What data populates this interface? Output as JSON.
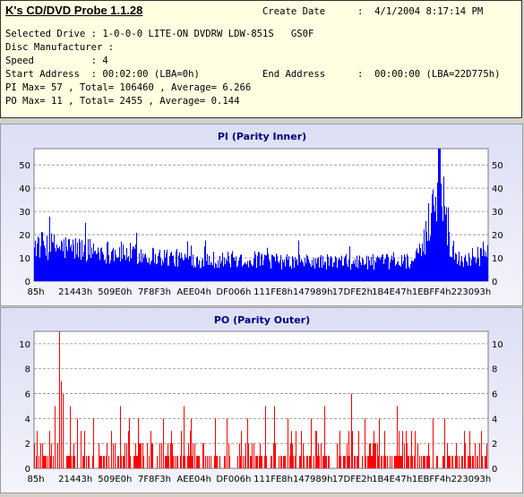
{
  "info": {
    "app_title": "K's CD/DVD Probe 1.1.28",
    "create_date_label": "Create Date",
    "create_date_value": ":  4/1/2004 8:17:14 PM",
    "lines": [
      "Selected Drive : 1-0-0-0 LITE-ON DVDRW LDW-851S   GS0F",
      "Disc Manufacturer :",
      "Speed          : 4",
      "Start Address  : 00:02:00 (LBA=0h)",
      "PI Max= 57 , Total= 106460 , Average= 6.266",
      "PO Max= 11 , Total= 2455 , Average= 0.144"
    ],
    "end_address_label": "End Address",
    "end_address_value": ":  00:00:00 (LBA=22D775h)"
  },
  "chart_data": [
    {
      "type": "bar",
      "title": "PI (Parity Inner)",
      "color": "#0000ff",
      "ylim": [
        0,
        57
      ],
      "yticks": [
        0,
        10,
        20,
        30,
        40,
        50
      ],
      "x_tick_labels": [
        "85h",
        "21443h",
        "509E0h",
        "7F8F3h",
        "AEE04h",
        "DF006h",
        "111FE8h",
        "147989h",
        "17DFE2h",
        "1B4E47h",
        "1EBFF4h",
        "223093h"
      ],
      "grid": true,
      "profile": [
        [
          0.0,
          17
        ],
        [
          0.05,
          16
        ],
        [
          0.1,
          15
        ],
        [
          0.15,
          14
        ],
        [
          0.2,
          13
        ],
        [
          0.25,
          12
        ],
        [
          0.3,
          11
        ],
        [
          0.35,
          10
        ],
        [
          0.4,
          10
        ],
        [
          0.45,
          10
        ],
        [
          0.5,
          10
        ],
        [
          0.55,
          9
        ],
        [
          0.6,
          9
        ],
        [
          0.65,
          9
        ],
        [
          0.7,
          9
        ],
        [
          0.75,
          9
        ],
        [
          0.8,
          9
        ],
        [
          0.84,
          10
        ],
        [
          0.855,
          14
        ],
        [
          0.865,
          22
        ],
        [
          0.875,
          32
        ],
        [
          0.885,
          44
        ],
        [
          0.895,
          52
        ],
        [
          0.905,
          38
        ],
        [
          0.915,
          18
        ],
        [
          0.93,
          10
        ],
        [
          0.96,
          11
        ],
        [
          1.0,
          12
        ]
      ],
      "max": 57,
      "max_position": 0.892
    },
    {
      "type": "bar",
      "title": "PO (Parity Outer)",
      "color": "#ff0000",
      "ylim": [
        0,
        11
      ],
      "yticks": [
        0,
        2,
        4,
        6,
        8,
        10
      ],
      "x_tick_labels": [
        "85h",
        "21443h",
        "509E0h",
        "7F8F3h",
        "AEE04h",
        "DF006h",
        "111FE8h",
        "147989h",
        "17DFE2h",
        "1B4E47h",
        "1EBFF4h",
        "223093h"
      ],
      "grid": true,
      "spikes": [
        [
          0.056,
          11
        ],
        [
          0.06,
          7
        ],
        [
          0.064,
          6
        ],
        [
          0.045,
          5
        ],
        [
          0.08,
          5
        ],
        [
          0.095,
          4
        ],
        [
          0.13,
          4
        ],
        [
          0.19,
          5
        ],
        [
          0.21,
          4
        ],
        [
          0.23,
          4
        ],
        [
          0.285,
          4
        ],
        [
          0.33,
          5
        ],
        [
          0.345,
          4
        ],
        [
          0.4,
          4
        ],
        [
          0.425,
          4
        ],
        [
          0.47,
          4
        ],
        [
          0.51,
          5
        ],
        [
          0.53,
          5
        ],
        [
          0.56,
          4
        ],
        [
          0.61,
          4
        ],
        [
          0.64,
          5
        ],
        [
          0.7,
          6
        ],
        [
          0.73,
          4
        ],
        [
          0.76,
          4
        ],
        [
          0.8,
          5
        ],
        [
          0.88,
          4
        ],
        [
          0.905,
          4
        ],
        [
          0.96,
          3
        ]
      ],
      "max": 11,
      "average": 0.144
    }
  ]
}
